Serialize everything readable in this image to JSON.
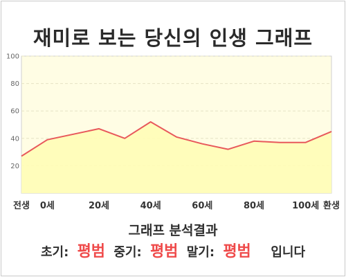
{
  "title": "재미로 보는 당신의 인생 그래프",
  "chart_data": {
    "type": "area",
    "categories": [
      "전생",
      "0세",
      "20세",
      "40세",
      "60세",
      "80세",
      "100세",
      "환생"
    ],
    "x": [
      -10,
      0,
      20,
      40,
      60,
      80,
      100,
      110
    ],
    "series": [
      {
        "x": [
          -10,
          0,
          20,
          30,
          40,
          50,
          60,
          70,
          80,
          90,
          100,
          110
        ],
        "values": [
          27,
          39,
          47,
          40,
          52,
          41,
          36,
          32,
          38,
          37,
          37,
          45
        ]
      }
    ],
    "ylim": [
      0,
      100
    ],
    "yticks": [
      20,
      40,
      60,
      80,
      100
    ],
    "grid": true,
    "colors": {
      "line": "#e8585b",
      "fill": "#fffdb6",
      "plot_bg": "#fffde4"
    }
  },
  "analysis": {
    "heading": "그래프 분석결과",
    "early_label": "초기:",
    "early_value": "평범",
    "middle_label": "중기:",
    "middle_value": "평범",
    "late_label": "말기:",
    "late_value": "평범",
    "ending": "입니다"
  }
}
